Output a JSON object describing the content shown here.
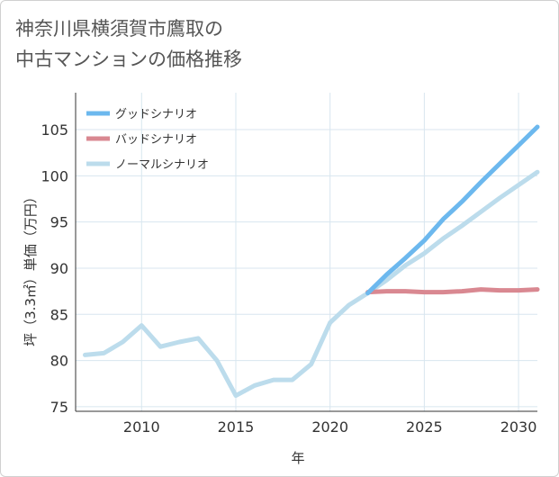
{
  "title": "神奈川県横須賀市鷹取の\n中古マンションの価格推移",
  "chart_data": {
    "type": "line",
    "xlabel": "年",
    "ylabel": "坪（3.3㎡）単価（万円）",
    "xlim": [
      2006.5,
      2031
    ],
    "ylim": [
      74.5,
      109
    ],
    "xticks": [
      2010,
      2015,
      2020,
      2025,
      2030
    ],
    "yticks": [
      75,
      80,
      85,
      90,
      95,
      100,
      105
    ],
    "grid": true,
    "legend_position": "top-left",
    "series": [
      {
        "name": "グッドシナリオ",
        "color": "#6cb8ee",
        "x": [
          2022,
          2023,
          2024,
          2025,
          2026,
          2027,
          2028,
          2029,
          2030,
          2031
        ],
        "y": [
          87.3,
          89.3,
          91.1,
          93.0,
          95.3,
          97.2,
          99.3,
          101.3,
          103.3,
          105.3
        ]
      },
      {
        "name": "バッドシナリオ",
        "color": "#d98891",
        "x": [
          2022,
          2023,
          2024,
          2025,
          2026,
          2027,
          2028,
          2029,
          2030,
          2031
        ],
        "y": [
          87.4,
          87.5,
          87.5,
          87.4,
          87.4,
          87.5,
          87.7,
          87.6,
          87.6,
          87.7
        ]
      },
      {
        "name": "ノーマルシナリオ",
        "color": "#bcdcec",
        "x": [
          2007,
          2008,
          2009,
          2010,
          2011,
          2012,
          2013,
          2014,
          2015,
          2016,
          2017,
          2018,
          2019,
          2020,
          2021,
          2022,
          2023,
          2024,
          2025,
          2026,
          2027,
          2028,
          2029,
          2030,
          2031
        ],
        "y": [
          80.6,
          80.8,
          82.0,
          83.8,
          81.5,
          82.0,
          82.4,
          80.0,
          76.2,
          77.3,
          77.9,
          77.9,
          79.6,
          84.1,
          86.0,
          87.3,
          88.7,
          90.3,
          91.6,
          93.2,
          94.6,
          96.1,
          97.6,
          99.0,
          100.4
        ]
      }
    ]
  }
}
